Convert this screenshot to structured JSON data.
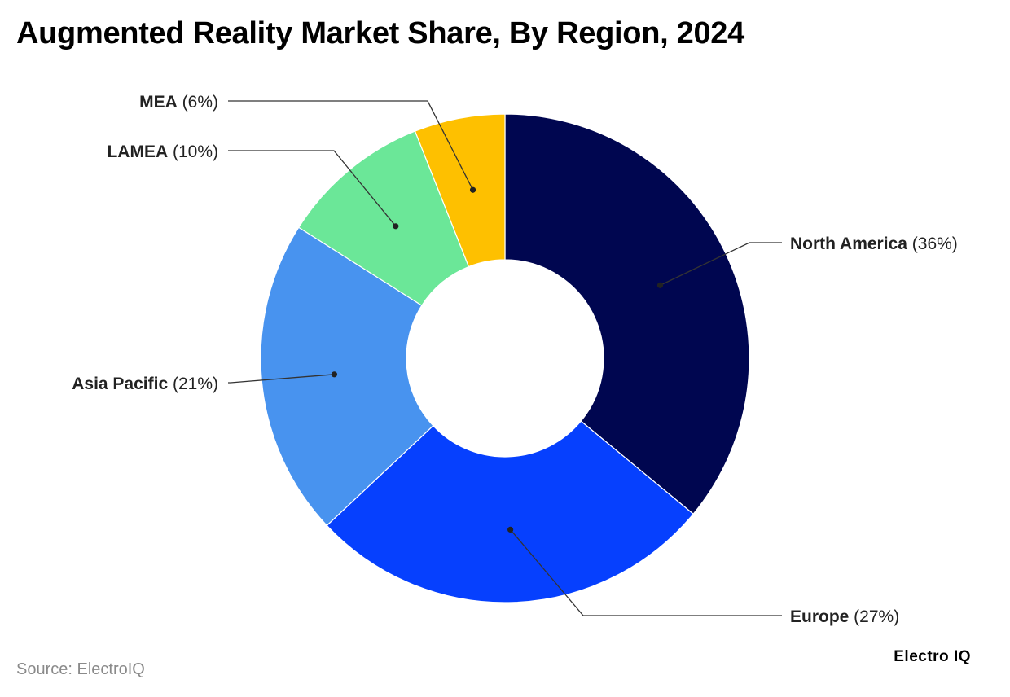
{
  "chart_data": {
    "type": "pie",
    "title": "Augmented Reality Market Share, By Region, 2024",
    "categories": [
      "North America",
      "Europe",
      "Asia Pacific",
      "LAMEA",
      "MEA"
    ],
    "values": [
      36,
      27,
      21,
      10,
      6
    ],
    "value_labels": [
      "(36%)",
      "(27%)",
      "(21%)",
      "(10%)",
      "(6%)"
    ],
    "colors": [
      "#000650",
      "#0640fe",
      "#4893ef",
      "#6be798",
      "#fec000"
    ],
    "donut": true,
    "legend": "none"
  },
  "source": "Source: ElectroIQ",
  "brand": "Electro IQ"
}
